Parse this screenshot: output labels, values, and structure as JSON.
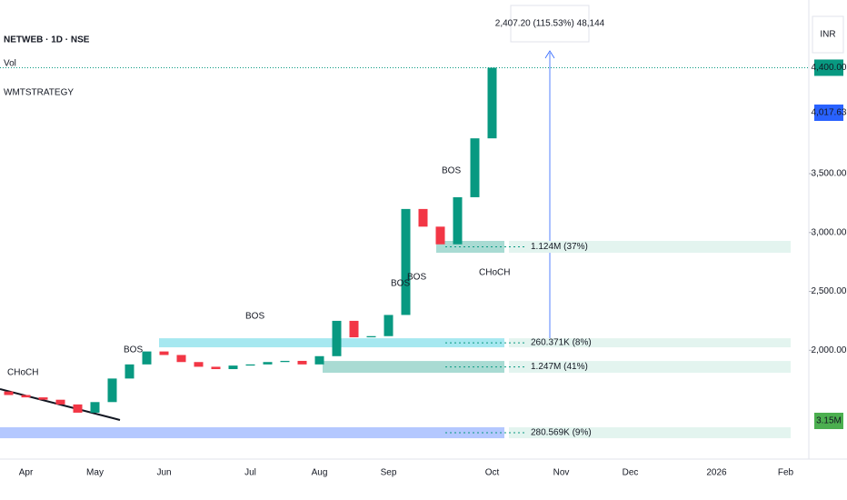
{
  "chart_data": {
    "type": "candlestick",
    "title": "NETWEB · 1D · NSE",
    "indicators": [
      "Vol",
      "WMTSTRATEGY"
    ],
    "currency": "INR",
    "categories": [
      null,
      "Apr",
      null,
      null,
      null,
      "May",
      null,
      null,
      null,
      "Jun",
      null,
      null,
      null,
      null,
      "Jul",
      null,
      null,
      null,
      "Aug",
      null,
      null,
      null,
      "Sep",
      null,
      null,
      null,
      null,
      null,
      "Oct",
      null,
      null,
      null,
      "Nov",
      null,
      null,
      null,
      "Dec",
      null,
      null,
      null,
      null,
      "2026",
      null,
      null,
      null,
      "Feb",
      null
    ],
    "open": [
      1650,
      1620,
      1600,
      1580,
      1540,
      1470,
      1560,
      1760,
      1880,
      1990,
      1960,
      1900,
      1860,
      1840,
      1870,
      1880,
      1900,
      1910,
      1880,
      1950,
      2250,
      2110,
      2120,
      2300,
      3200,
      3050,
      2900,
      3300,
      3800,
      null,
      null,
      null,
      null,
      null,
      null,
      null,
      null,
      null,
      null,
      null,
      null,
      null,
      null,
      null,
      null,
      null,
      null
    ],
    "close": [
      1620,
      1600,
      1580,
      1540,
      1470,
      1560,
      1760,
      1880,
      1990,
      1960,
      1900,
      1860,
      1840,
      1870,
      1880,
      1900,
      1910,
      1880,
      1950,
      2250,
      2110,
      2120,
      2300,
      3200,
      3050,
      2900,
      3300,
      3800,
      4400,
      null,
      null,
      null,
      null,
      null,
      null,
      null,
      null,
      null,
      null,
      null,
      null,
      null,
      null,
      null,
      null,
      null,
      null
    ],
    "up_color": "#089981",
    "down_color": "#f23645",
    "ylim": [
      1153,
      4975
    ],
    "yticks": [
      {
        "value": 2000,
        "label": "2,000.00"
      },
      {
        "value": 2500,
        "label": "2,500.00"
      },
      {
        "value": 3000,
        "label": "3,000.00"
      },
      {
        "value": 3500,
        "label": "3,500.00"
      }
    ],
    "last_price": {
      "value": 4400,
      "label": "4,400.00"
    },
    "ma_price": {
      "value": 4017.63,
      "label": "4,017.63"
    },
    "volume_label": "3.15M",
    "measure_label": "2,407.20 (115.53%) 48,144",
    "zones": [
      {
        "label": "1.124M (37%)",
        "low": 2828,
        "high": 2929
      },
      {
        "label": "260.371K (8%)",
        "low": 2025,
        "high": 2102
      },
      {
        "label": "1.247M (41%)",
        "low": 1809,
        "high": 1909
      },
      {
        "label": "280.569K (9%)",
        "low": 1253,
        "high": 1346
      }
    ],
    "annotations": [
      "CHoCH",
      "BOS",
      "BOS",
      "BOS",
      "BOS",
      "BOS",
      "CHoCH"
    ]
  }
}
